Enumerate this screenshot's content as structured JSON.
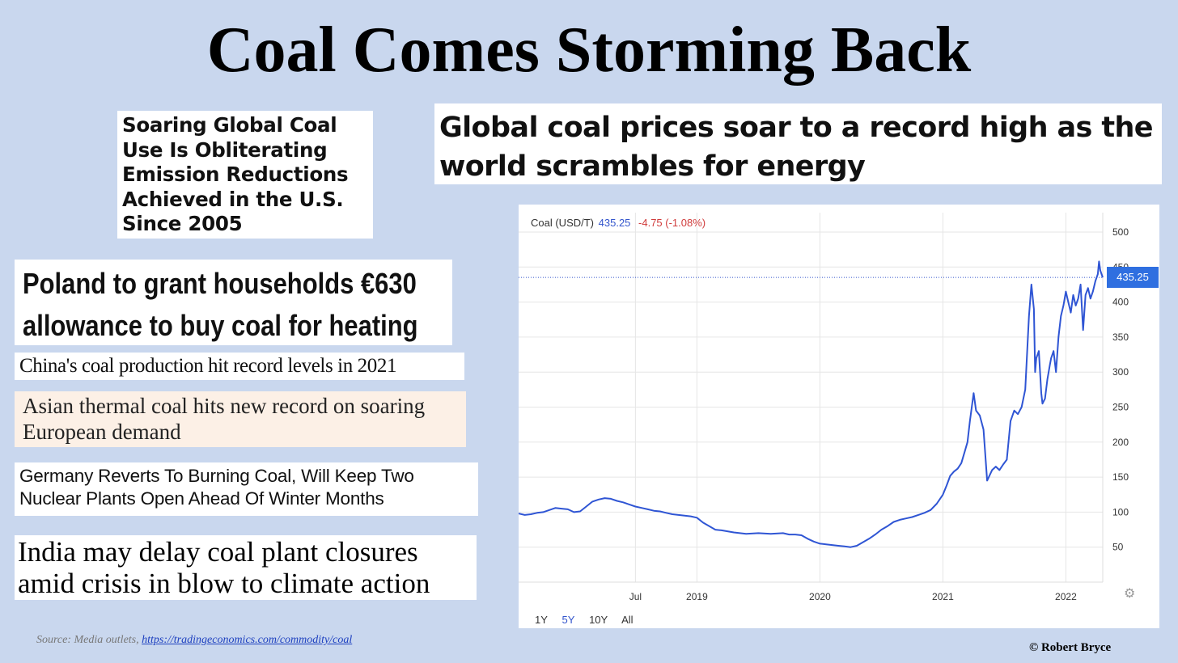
{
  "title": "Coal Comes Storming Back",
  "headlines": {
    "soaring": [
      "Soaring Global Coal",
      "Use Is Obliterating",
      "Emission Reductions",
      "Achieved in the U.S.",
      "Since 2005"
    ],
    "global": [
      "Global coal prices soar to a record high as the",
      "world scrambles for energy"
    ],
    "poland": [
      "Poland to grant households €630",
      "allowance to buy coal for heating"
    ],
    "china": "China's coal production hit record levels in 2021",
    "asian": [
      "Asian thermal coal hits new record on soaring",
      "European demand"
    ],
    "germany": [
      "Germany Reverts To Burning Coal, Will Keep Two",
      "Nuclear Plants Open Ahead Of Winter Months"
    ],
    "india": [
      "India may delay coal plant closures",
      "amid crisis in blow to climate action"
    ]
  },
  "source": {
    "prefix": "Source: Media outlets, ",
    "link": "https://tradingeconomics.com/commodity/coal"
  },
  "copyright": "© Robert Bryce",
  "chart_ui": {
    "series_label": "Coal (USD/T)",
    "last_value": "435.25",
    "change": "-4.75 (-1.08%)",
    "price_tag": "435.25",
    "range_buttons": [
      "1Y",
      "5Y",
      "10Y",
      "All"
    ],
    "active_range": "5Y"
  },
  "chart_data": {
    "type": "line",
    "title": "",
    "xlabel": "",
    "ylabel": "",
    "series": [
      {
        "name": "Coal (USD/T)",
        "color": "#2f55d4",
        "x": [
          2017.55,
          2017.6,
          2017.65,
          2017.7,
          2017.75,
          2017.8,
          2017.85,
          2017.9,
          2017.95,
          2018.0,
          2018.05,
          2018.1,
          2018.15,
          2018.2,
          2018.25,
          2018.3,
          2018.35,
          2018.4,
          2018.45,
          2018.5,
          2018.55,
          2018.6,
          2018.65,
          2018.7,
          2018.75,
          2018.8,
          2018.85,
          2018.9,
          2018.95,
          2019.0,
          2019.05,
          2019.1,
          2019.15,
          2019.2,
          2019.3,
          2019.4,
          2019.5,
          2019.6,
          2019.7,
          2019.75,
          2019.8,
          2019.85,
          2019.9,
          2019.95,
          2020.0,
          2020.05,
          2020.1,
          2020.15,
          2020.2,
          2020.25,
          2020.3,
          2020.35,
          2020.4,
          2020.45,
          2020.5,
          2020.55,
          2020.6,
          2020.65,
          2020.7,
          2020.75,
          2020.8,
          2020.85,
          2020.9,
          2020.95,
          2021.0,
          2021.03,
          2021.06,
          2021.09,
          2021.12,
          2021.15,
          2021.18,
          2021.2,
          2021.22,
          2021.25,
          2021.27,
          2021.3,
          2021.33,
          2021.36,
          2021.4,
          2021.43,
          2021.46,
          2021.49,
          2021.52,
          2021.55,
          2021.58,
          2021.61,
          2021.64,
          2021.67,
          2021.7,
          2021.72,
          2021.74,
          2021.75,
          2021.76,
          2021.78,
          2021.8,
          2021.81,
          2021.83,
          2021.85,
          2021.87,
          2021.88,
          2021.9,
          2021.92,
          2021.94,
          2021.96,
          2021.98,
          2022.0,
          2022.02,
          2022.04,
          2022.06,
          2022.08,
          2022.1,
          2022.12,
          2022.14,
          2022.16,
          2022.18,
          2022.2,
          2022.22,
          2022.24,
          2022.26,
          2022.27,
          2022.28,
          2022.29,
          2022.3
        ],
        "y": [
          98,
          96,
          97,
          99,
          100,
          103,
          106,
          105,
          104,
          100,
          101,
          108,
          115,
          118,
          120,
          119,
          116,
          114,
          111,
          108,
          106,
          104,
          102,
          101,
          99,
          97,
          96,
          95,
          94,
          92,
          85,
          80,
          75,
          74,
          71,
          69,
          70,
          69,
          70,
          68,
          68,
          67,
          62,
          58,
          55,
          54,
          53,
          52,
          51,
          50,
          52,
          57,
          62,
          68,
          75,
          80,
          86,
          89,
          91,
          93,
          96,
          99,
          103,
          112,
          125,
          138,
          152,
          158,
          162,
          170,
          188,
          200,
          230,
          270,
          245,
          238,
          218,
          145,
          160,
          165,
          160,
          168,
          175,
          230,
          245,
          240,
          250,
          275,
          380,
          425,
          390,
          300,
          320,
          330,
          270,
          255,
          262,
          290,
          310,
          320,
          330,
          300,
          350,
          380,
          395,
          415,
          400,
          385,
          410,
          395,
          405,
          425,
          360,
          410,
          420,
          405,
          415,
          430,
          440,
          458,
          445,
          440,
          435.25
        ]
      }
    ],
    "x_ticks": [
      {
        "value": 2018.5,
        "label": "Jul"
      },
      {
        "value": 2019.0,
        "label": "2019"
      },
      {
        "value": 2020.0,
        "label": "2020"
      },
      {
        "value": 2021.0,
        "label": "2021"
      },
      {
        "value": 2022.0,
        "label": "2022"
      }
    ],
    "y_ticks": [
      50,
      100,
      150,
      200,
      250,
      300,
      350,
      400,
      450,
      500
    ],
    "xlim": [
      2017.55,
      2022.3
    ],
    "ylim": [
      0,
      500
    ],
    "grid": true,
    "last_value": 435.25
  }
}
